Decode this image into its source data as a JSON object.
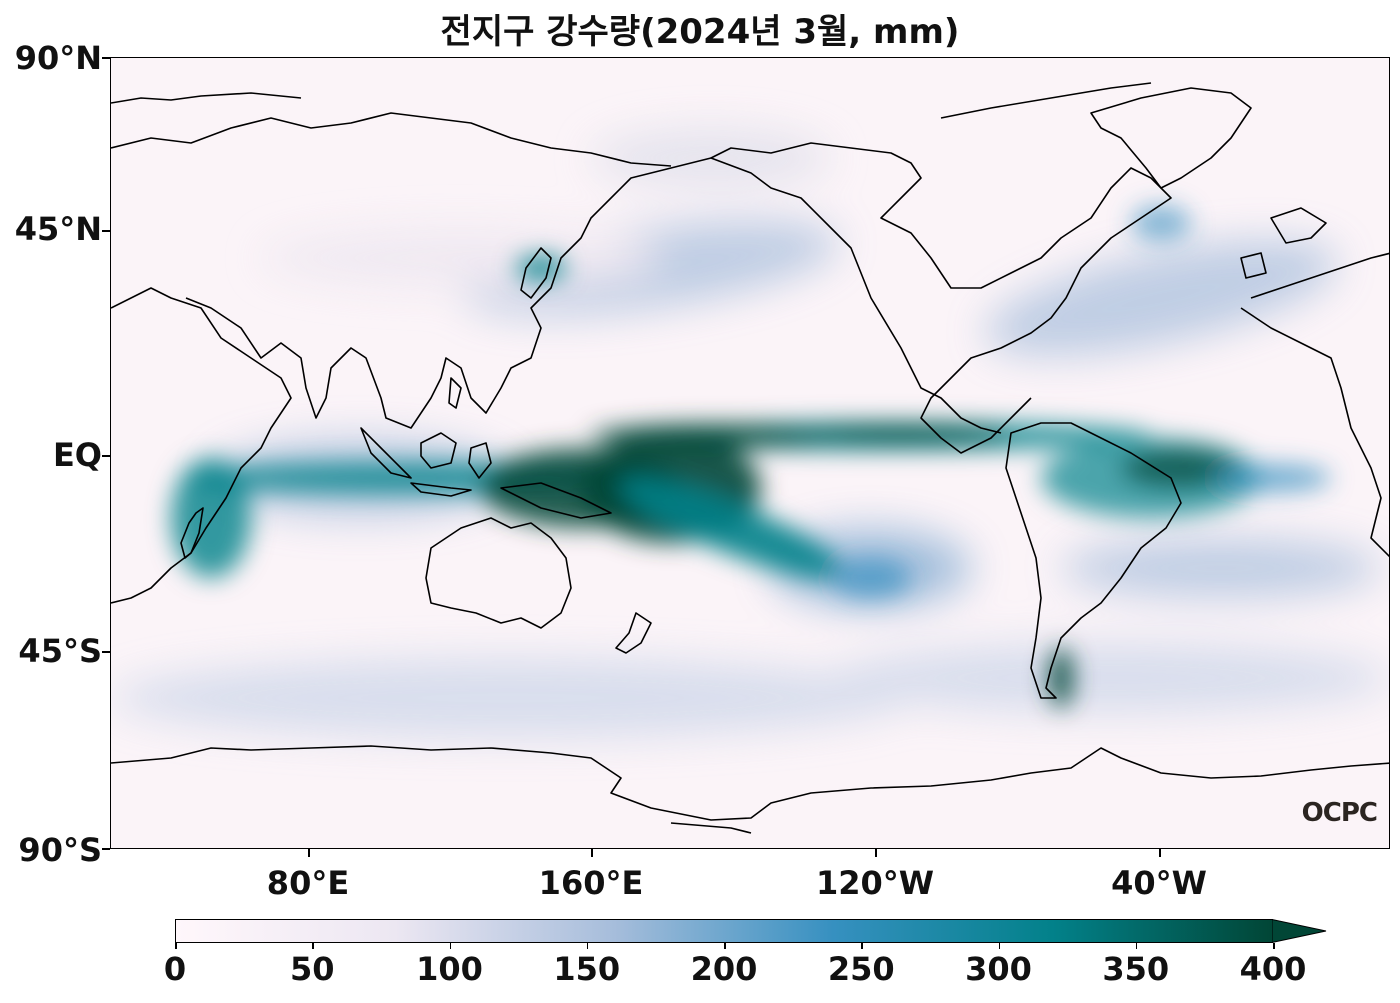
{
  "title": "전지구 강수량(2024년 3월, mm)",
  "y_axis_labels": [
    "90°N",
    "45°N",
    "EQ",
    "45°S",
    "90°S"
  ],
  "x_axis_labels": [
    "80°E",
    "160°E",
    "120°W",
    "40°W"
  ],
  "colorbar": {
    "ticks": [
      "0",
      "50",
      "100",
      "150",
      "200",
      "250",
      "300",
      "350",
      "400"
    ],
    "min": 0,
    "max": 400,
    "extend": "max",
    "colors": [
      "#fff7fb",
      "#ece7f2",
      "#a6bddb",
      "#3690c0",
      "#02818a",
      "#014636"
    ]
  },
  "credit": "OCPC",
  "map": {
    "projection": "PlateCarree, central longitude 200°",
    "lon_range": [
      20,
      380
    ],
    "lat_range": [
      -90,
      90
    ],
    "field": "monthly precipitation",
    "coastlines": true
  }
}
